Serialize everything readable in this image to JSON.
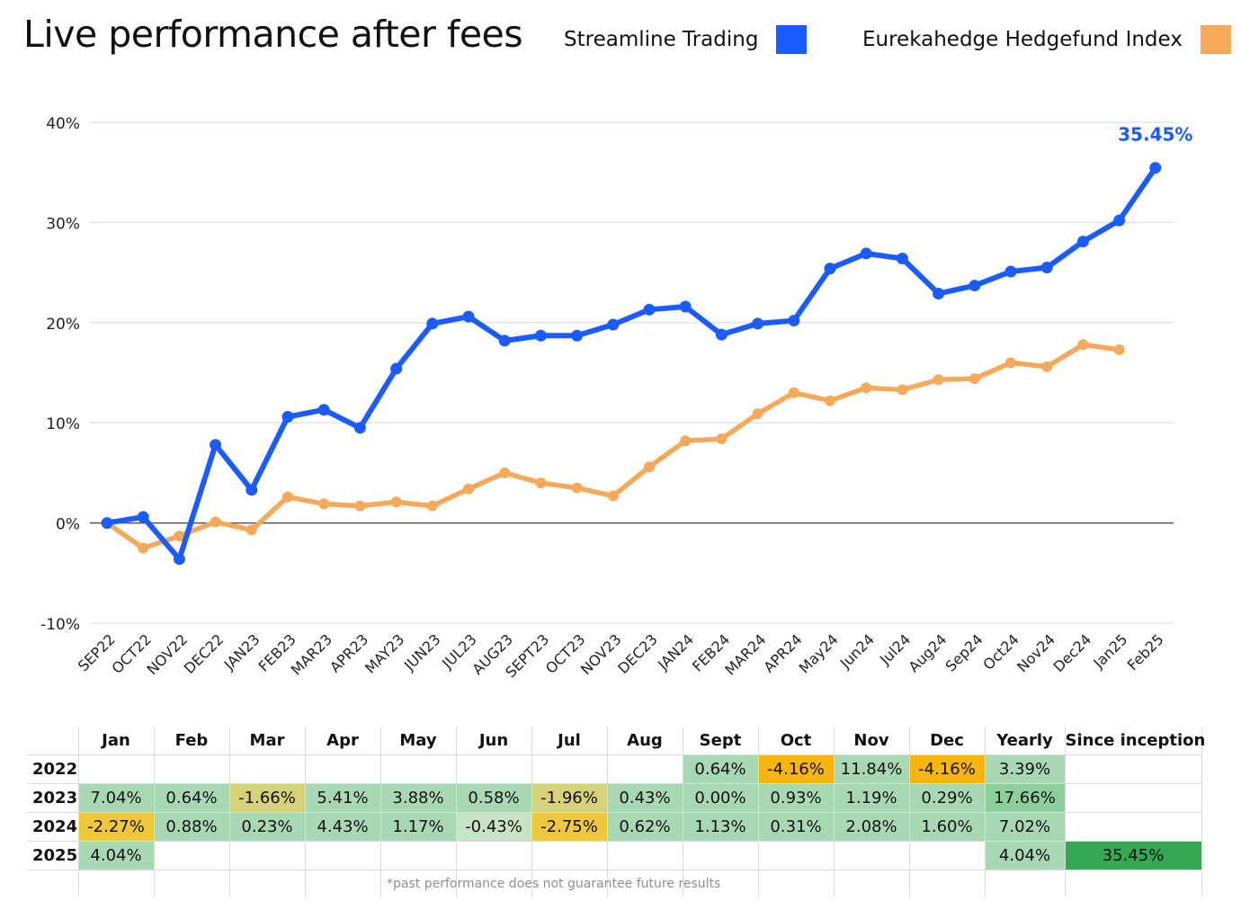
{
  "header": {
    "title": "Live performance after fees"
  },
  "legend": [
    {
      "name": "Streamline Trading",
      "color": "#1a5cff"
    },
    {
      "name": "Eurekahedge Hedgefund Index",
      "color": "#f7a95a"
    }
  ],
  "chart_data": {
    "type": "line",
    "title": "Live performance after fees",
    "xlabel": "",
    "ylabel": "",
    "ylim": [
      -10,
      40
    ],
    "yticks": [
      "-10%",
      "0%",
      "10%",
      "20%",
      "30%",
      "40%"
    ],
    "ytick_values": [
      -10,
      0,
      10,
      20,
      30,
      40
    ],
    "grid": true,
    "legend_position": "top-right",
    "categories": [
      "SEP22",
      "OCT22",
      "NOV22",
      "DEC22",
      "JAN23",
      "FEB23",
      "MAR23",
      "APR23",
      "MAY23",
      "JUN23",
      "JUL23",
      "AUG23",
      "SEPT23",
      "OCT23",
      "NOV23",
      "DEC23",
      "JAN24",
      "FEB24",
      "MAR24",
      "APR24",
      "May24",
      "Jun24",
      "Jul24",
      "Aug24",
      "Sep24",
      "Oct24",
      "Nov24",
      "Dec24",
      "Jan25",
      "Feb25"
    ],
    "series": [
      {
        "name": "Streamline Trading",
        "color": "#1a5cff",
        "values": [
          0,
          0.6,
          -3.6,
          7.8,
          3.3,
          10.6,
          11.3,
          9.5,
          15.4,
          19.9,
          20.6,
          18.2,
          18.7,
          18.7,
          19.8,
          21.3,
          21.6,
          18.8,
          19.9,
          20.2,
          25.4,
          26.9,
          26.4,
          22.9,
          23.7,
          25.1,
          25.5,
          28.1,
          30.2,
          35.45
        ]
      },
      {
        "name": "Eurekahedge Hedgefund Index",
        "color": "#f7a95a",
        "values": [
          0,
          -2.5,
          -1.3,
          0.1,
          -0.7,
          2.6,
          1.9,
          1.7,
          2.1,
          1.7,
          3.4,
          5.0,
          4.0,
          3.5,
          2.7,
          5.6,
          8.2,
          8.4,
          10.9,
          13.0,
          12.2,
          13.5,
          13.3,
          14.3,
          14.4,
          16.0,
          15.6,
          17.8,
          17.3,
          null
        ]
      }
    ],
    "annotations": [
      {
        "text": "35.45%",
        "series": "Streamline Trading",
        "category": "Feb25"
      }
    ]
  },
  "returns_table": {
    "headers": [
      "",
      "Jan",
      "Feb",
      "Mar",
      "Apr",
      "May",
      "Jun",
      "Jul",
      "Aug",
      "Sept",
      "Oct",
      "Nov",
      "Dec",
      "Yearly",
      "Since inception"
    ],
    "rows": [
      {
        "year": "2022",
        "cells": [
          "",
          "",
          "",
          "",
          "",
          "",
          "",
          "",
          "0.64%",
          "-4.16%",
          "11.84%",
          "-4.16%",
          "3.39%",
          ""
        ]
      },
      {
        "year": "2023",
        "cells": [
          "7.04%",
          "0.64%",
          "-1.66%",
          "5.41%",
          "3.88%",
          "0.58%",
          "-1.96%",
          "0.43%",
          "0.00%",
          "0.93%",
          "1.19%",
          "0.29%",
          "17.66%",
          ""
        ]
      },
      {
        "year": "2024",
        "cells": [
          "-2.27%",
          "0.88%",
          "0.23%",
          "4.43%",
          "1.17%",
          "-0.43%",
          "-2.75%",
          "0.62%",
          "1.13%",
          "0.31%",
          "2.08%",
          "1.60%",
          "7.02%",
          ""
        ]
      },
      {
        "year": "2025",
        "cells": [
          "4.04%",
          "",
          "",
          "",
          "",
          "",
          "",
          "",
          "",
          "",
          "",
          "",
          "4.04%",
          "35.45%"
        ]
      }
    ],
    "footnote": "*past performance does not guarantee future results"
  }
}
